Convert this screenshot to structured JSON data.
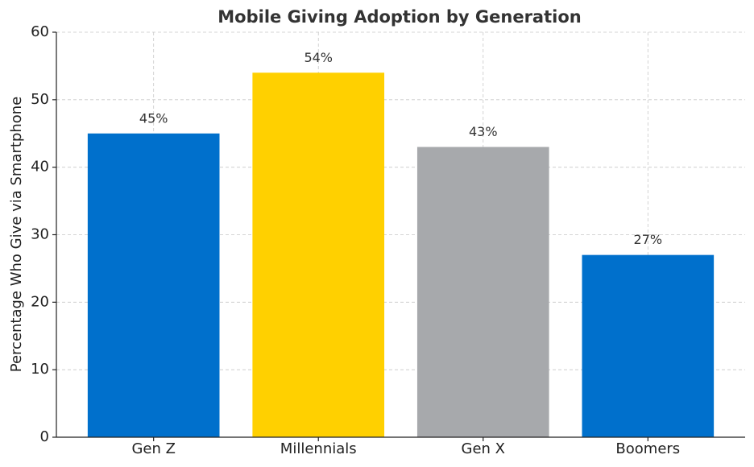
{
  "chart_data": {
    "type": "bar",
    "title": "Mobile Giving Adoption by Generation",
    "y_label": "Percentage Who Give via Smartphone",
    "categories": [
      "Gen Z",
      "Millennials",
      "Gen X",
      "Boomers"
    ],
    "values": [
      45,
      54,
      43,
      27
    ],
    "value_labels": [
      "45%",
      "54%",
      "43%",
      "27%"
    ],
    "colors": [
      "#0070cc",
      "#ffd000",
      "#a7a9ac",
      "#0070cc"
    ],
    "ylim": [
      0,
      60
    ],
    "yticks": [
      0,
      10,
      20,
      30,
      40,
      50,
      60
    ],
    "grid": true
  }
}
